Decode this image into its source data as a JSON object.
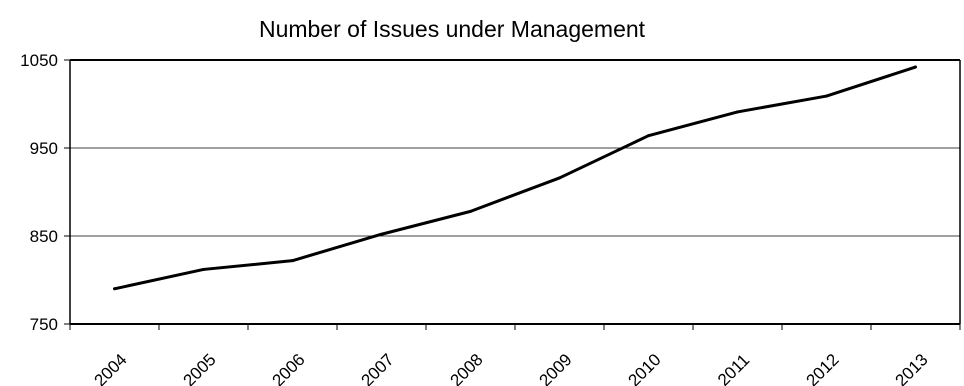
{
  "chart_data": {
    "type": "line",
    "title": "Number of Issues under Management",
    "xlabel": "",
    "ylabel": "",
    "categories": [
      "2004",
      "2005",
      "2006",
      "2007",
      "2008",
      "2009",
      "2010",
      "2011",
      "2012",
      "2013"
    ],
    "series": [
      {
        "values": [
          790,
          812,
          822,
          852,
          878,
          916,
          964,
          991,
          1009,
          1042
        ]
      }
    ],
    "ylim": [
      750,
      1050
    ],
    "yticks": [
      750,
      850,
      950,
      1050
    ],
    "ytick_labels": [
      "750",
      "850",
      "950",
      "1050"
    ],
    "grid": "horizontal",
    "legend": "none",
    "line_color": "#000000"
  }
}
